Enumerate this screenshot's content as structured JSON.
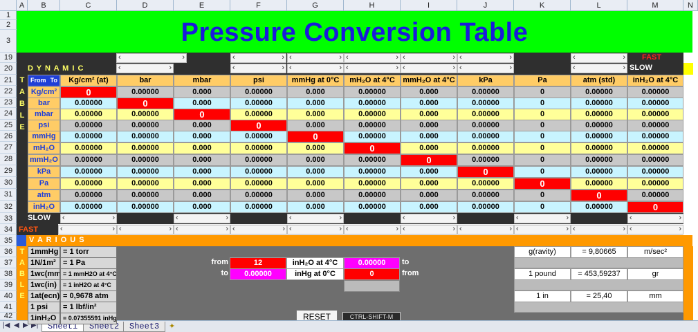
{
  "columns": [
    "",
    "A",
    "B",
    "C",
    "D",
    "E",
    "F",
    "G",
    "H",
    "I",
    "J",
    "K",
    "L",
    "M",
    "N"
  ],
  "rows": [
    "1",
    "2",
    "3",
    "19",
    "20",
    "21",
    "22",
    "23",
    "24",
    "25",
    "26",
    "27",
    "28",
    "29",
    "30",
    "31",
    "32",
    "33",
    "34",
    "35",
    "36",
    "37",
    "38",
    "39",
    "40",
    "41",
    "42"
  ],
  "title": "Pressure Conversion Table",
  "labels": {
    "dynamic": "D Y N A M I C",
    "fast_top": "FAST",
    "slow_top": "SLOW",
    "slow_bottom": "SLOW",
    "fast_bottom": "FAST",
    "various": "V A R I O U S",
    "from_to_from": "From",
    "from_to_to": "To"
  },
  "table_letters": [
    "T",
    "A",
    "B",
    "L",
    "E"
  ],
  "headers": [
    "Kg/cm² (at)",
    "bar",
    "mbar",
    "psi",
    "mmHg at 0°C",
    "mH₂O at 4°C",
    "mmH₂O at 4°C",
    "kPa",
    "Pa",
    "atm (std)",
    "inH₂O at 4°C"
  ],
  "row_labels": [
    "Kg/cm²",
    "bar",
    "mbar",
    "psi",
    "mmHg",
    "mH₂O",
    "mmH₂O",
    "kPa",
    "Pa",
    "atm",
    "inH₂O"
  ],
  "matrix": [
    [
      "0",
      "0.00000",
      "0.000",
      "0.00000",
      "0.000",
      "0.00000",
      "0.000",
      "0.00000",
      "0",
      "0.00000",
      "0.00000"
    ],
    [
      "0.00000",
      "0",
      "0.000",
      "0.00000",
      "0.000",
      "0.00000",
      "0.000",
      "0.00000",
      "0",
      "0.00000",
      "0.00000"
    ],
    [
      "0.00000",
      "0.00000",
      "0",
      "0.00000",
      "0.000",
      "0.00000",
      "0.000",
      "0.00000",
      "0",
      "0.00000",
      "0.00000"
    ],
    [
      "0.00000",
      "0.00000",
      "0.000",
      "0",
      "0.000",
      "0.00000",
      "0.000",
      "0.00000",
      "0",
      "0.00000",
      "0.00000"
    ],
    [
      "0.00000",
      "0.00000",
      "0.000",
      "0.00000",
      "0",
      "0.00000",
      "0.000",
      "0.00000",
      "0",
      "0.00000",
      "0.00000"
    ],
    [
      "0.00000",
      "0.00000",
      "0.000",
      "0.00000",
      "0.000",
      "0",
      "0.000",
      "0.00000",
      "0",
      "0.00000",
      "0.00000"
    ],
    [
      "0.00000",
      "0.00000",
      "0.000",
      "0.00000",
      "0.000",
      "0.00000",
      "0",
      "0.00000",
      "0",
      "0.00000",
      "0.00000"
    ],
    [
      "0.00000",
      "0.00000",
      "0.000",
      "0.00000",
      "0.000",
      "0.00000",
      "0.000",
      "0",
      "0",
      "0.00000",
      "0.00000"
    ],
    [
      "0.00000",
      "0.00000",
      "0.000",
      "0.00000",
      "0.000",
      "0.00000",
      "0.000",
      "0.00000",
      "0",
      "0.00000",
      "0.00000"
    ],
    [
      "0.00000",
      "0.00000",
      "0.000",
      "0.00000",
      "0.000",
      "0.00000",
      "0.000",
      "0.00000",
      "0",
      "0",
      "0.00000"
    ],
    [
      "0.00000",
      "0.00000",
      "0.000",
      "0.00000",
      "0.000",
      "0.00000",
      "0.000",
      "0.00000",
      "0",
      "0.00000",
      "0"
    ]
  ],
  "various_left": [
    {
      "a": "1mmHg",
      "b": "= 1 torr"
    },
    {
      "a": "1N/1m²",
      "b": "= 1 Pa"
    },
    {
      "a": "1wc(mm)",
      "b": "= 1 mmH2O at 4°C"
    },
    {
      "a": "1wc(in)",
      "b": "= 1 inH2O at 4°C"
    },
    {
      "a": "1at(ecn)",
      "b": "= 0,9678 atm"
    },
    {
      "a": "1 psi",
      "b": "= 1 lbf/in²"
    },
    {
      "a": "1inH₂O",
      "b": "= 0.07355591 inHg"
    }
  ],
  "converter": {
    "from_label": "from",
    "to_label": "to",
    "from_value": "12",
    "from_unit": "inH₂O at 4°C",
    "from_result": "0.00000",
    "from_suffix": "to",
    "to_value": "0.00000",
    "to_unit": "inHg at 0°C",
    "to_result": "0",
    "to_suffix": "from",
    "reset": "RESET",
    "shortcut": "CTRL-SHIFT-M"
  },
  "various_right": [
    {
      "a": "g(ravity)",
      "b": "= 9,80665",
      "c": "m/sec²"
    },
    {
      "a": "1 pound",
      "b": "= 453,59237",
      "c": "gr"
    },
    {
      "a": "1 in",
      "b": "= 25,40",
      "c": "mm"
    }
  ],
  "sheets": [
    "Sheet1",
    "Sheet2",
    "Sheet3"
  ],
  "colors": {
    "title_bg": "#00ff00",
    "title_text": "#1a1adb",
    "header": "#ffcc66",
    "zero": "#ff0000",
    "orange": "#ff9900",
    "magenta": "#ff00ff"
  }
}
